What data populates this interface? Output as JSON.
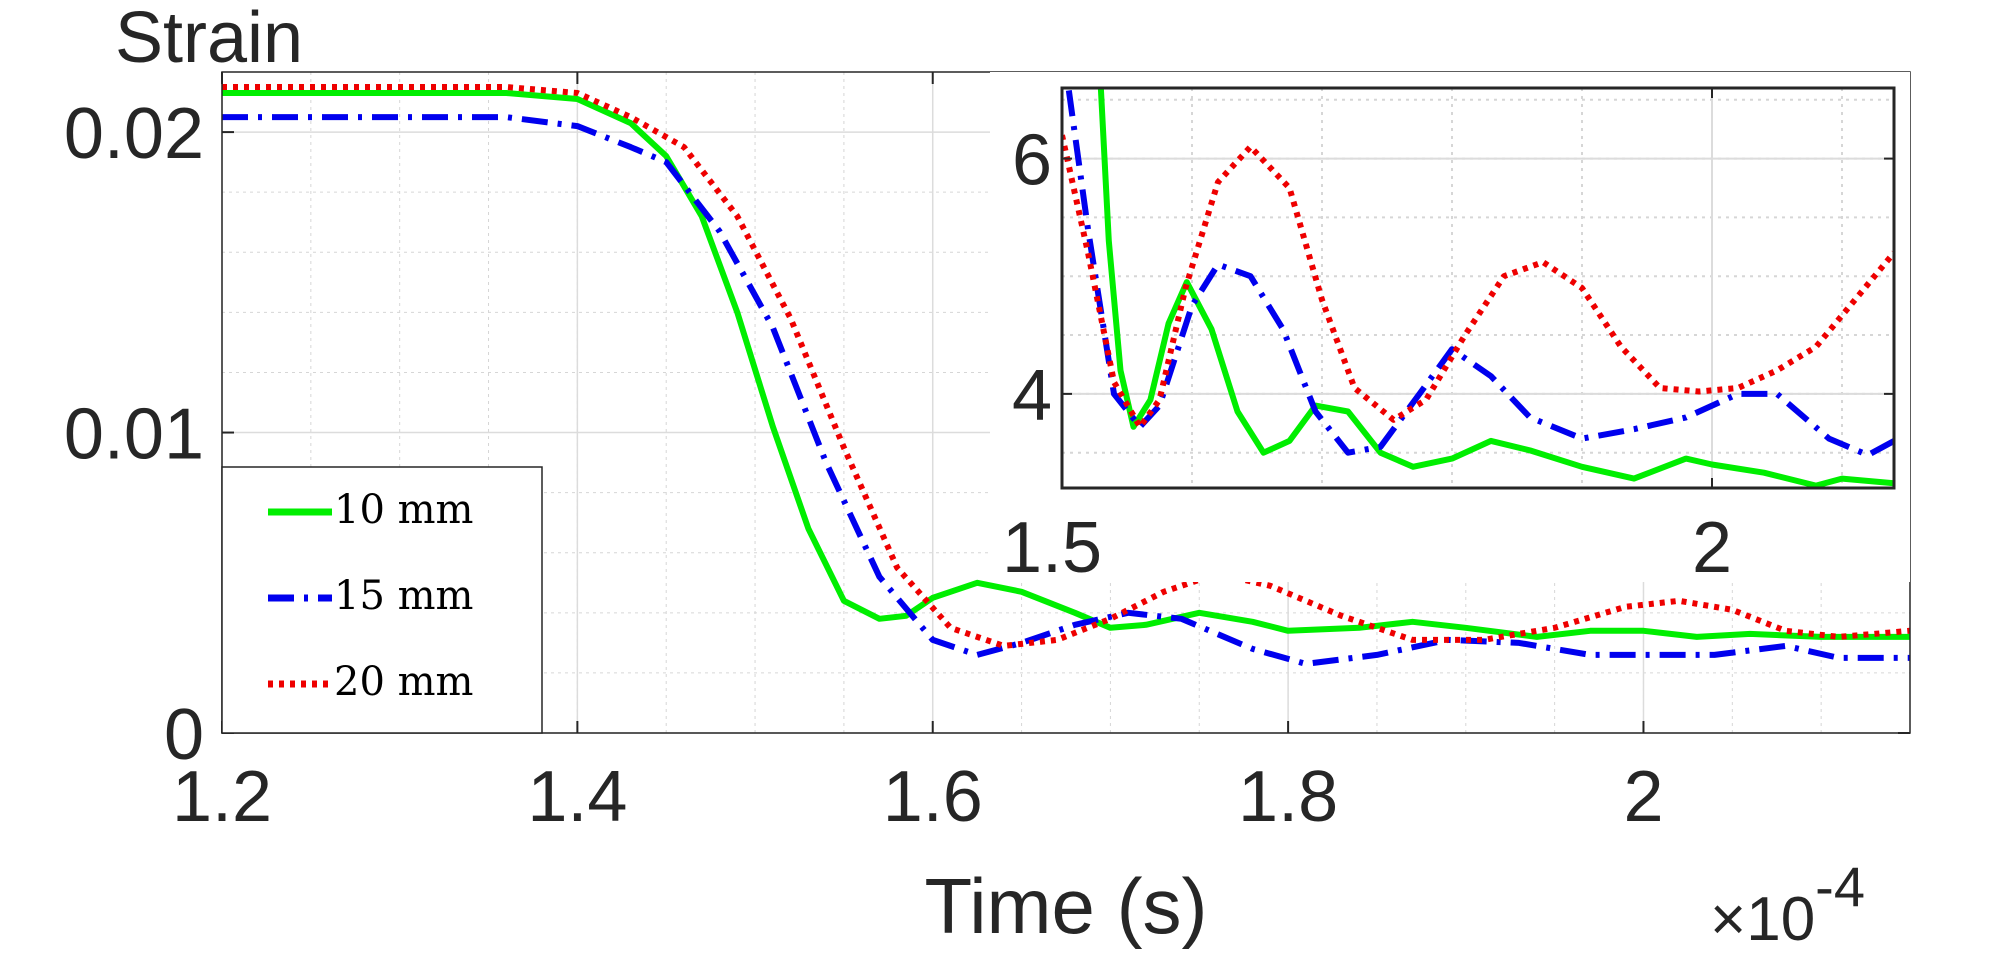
{
  "chart_data": {
    "type": "line",
    "ylabel": "Strain",
    "xlabel": "Time (s)",
    "x_multiplier": "×10",
    "x_multiplier_exponent": "-4",
    "xlim": [
      1.2,
      2.15
    ],
    "ylim": [
      0,
      0.022
    ],
    "xticks": [
      1.2,
      1.4,
      1.6,
      1.8,
      2
    ],
    "xtick_labels": [
      "1.2",
      "1.4",
      "1.6",
      "1.8",
      "2"
    ],
    "yticks": [
      0,
      0.01,
      0.02
    ],
    "ytick_labels": [
      "0",
      "0.01",
      "0.02"
    ],
    "grid": true,
    "legend_position": "bottom-left",
    "series": [
      {
        "name": "10 mm",
        "color": "#00ee00",
        "style": "solid",
        "x": [
          1.2,
          1.3,
          1.36,
          1.4,
          1.43,
          1.45,
          1.47,
          1.49,
          1.51,
          1.53,
          1.55,
          1.57,
          1.585,
          1.6,
          1.625,
          1.65,
          1.68,
          1.7,
          1.72,
          1.75,
          1.78,
          1.8,
          1.84,
          1.87,
          1.9,
          1.94,
          1.97,
          2.0,
          2.03,
          2.06,
          2.1,
          2.15
        ],
        "y": [
          0.0213,
          0.0213,
          0.0213,
          0.0211,
          0.0203,
          0.0192,
          0.0172,
          0.014,
          0.0102,
          0.0068,
          0.0044,
          0.0038,
          0.0039,
          0.0045,
          0.005,
          0.0047,
          0.004,
          0.0035,
          0.0036,
          0.004,
          0.0037,
          0.0034,
          0.0035,
          0.0037,
          0.0035,
          0.0032,
          0.0034,
          0.0034,
          0.0032,
          0.0033,
          0.0032,
          0.0032
        ]
      },
      {
        "name": "15 mm",
        "color": "#0000ee",
        "style": "dashdot",
        "x": [
          1.2,
          1.3,
          1.36,
          1.4,
          1.43,
          1.45,
          1.48,
          1.51,
          1.54,
          1.57,
          1.6,
          1.625,
          1.65,
          1.68,
          1.71,
          1.74,
          1.78,
          1.81,
          1.85,
          1.89,
          1.93,
          1.97,
          2.0,
          2.04,
          2.08,
          2.11,
          2.15
        ],
        "y": [
          0.0205,
          0.0205,
          0.0205,
          0.0202,
          0.0195,
          0.019,
          0.0167,
          0.0135,
          0.009,
          0.0052,
          0.0031,
          0.0026,
          0.003,
          0.0036,
          0.004,
          0.0038,
          0.0028,
          0.0023,
          0.0026,
          0.0031,
          0.003,
          0.0026,
          0.0026,
          0.0026,
          0.0029,
          0.0025,
          0.0025
        ]
      },
      {
        "name": "20 mm",
        "color": "#ee0000",
        "style": "dotted",
        "x": [
          1.2,
          1.3,
          1.36,
          1.4,
          1.43,
          1.46,
          1.49,
          1.52,
          1.55,
          1.58,
          1.61,
          1.64,
          1.67,
          1.7,
          1.73,
          1.76,
          1.79,
          1.83,
          1.87,
          1.91,
          1.95,
          1.99,
          2.02,
          2.05,
          2.08,
          2.11,
          2.15
        ],
        "y": [
          0.0215,
          0.0215,
          0.0215,
          0.0213,
          0.0205,
          0.0195,
          0.0172,
          0.0138,
          0.0095,
          0.0055,
          0.0035,
          0.0029,
          0.0031,
          0.0038,
          0.0047,
          0.0053,
          0.0049,
          0.0039,
          0.0031,
          0.0031,
          0.0035,
          0.0042,
          0.0044,
          0.0041,
          0.0034,
          0.0032,
          0.0034
        ]
      }
    ],
    "inset": {
      "xlim": [
        1.5,
        2.14
      ],
      "ylim": [
        3.2,
        6.6
      ],
      "xticks": [
        1.5,
        2
      ],
      "xtick_labels": [
        "1.5",
        "2"
      ],
      "yticks": [
        4,
        6
      ],
      "ytick_labels": [
        "4",
        "6"
      ],
      "grid": true,
      "series": [
        {
          "name": "10 mm",
          "x": [
            1.528,
            1.536,
            1.545,
            1.555,
            1.568,
            1.582,
            1.596,
            1.615,
            1.635,
            1.655,
            1.675,
            1.695,
            1.72,
            1.745,
            1.77,
            1.8,
            1.83,
            1.86,
            1.9,
            1.94,
            1.98,
            2.0,
            2.04,
            2.08,
            2.1,
            2.14
          ],
          "y": [
            7.0,
            5.3,
            4.2,
            3.72,
            3.95,
            4.6,
            4.95,
            4.55,
            3.85,
            3.5,
            3.6,
            3.9,
            3.85,
            3.5,
            3.38,
            3.45,
            3.6,
            3.52,
            3.38,
            3.28,
            3.45,
            3.4,
            3.33,
            3.22,
            3.28,
            3.24
          ]
        },
        {
          "name": "15 mm",
          "x": [
            1.5,
            1.52,
            1.54,
            1.56,
            1.575,
            1.6,
            1.62,
            1.645,
            1.67,
            1.695,
            1.72,
            1.745,
            1.775,
            1.8,
            1.83,
            1.86,
            1.9,
            1.94,
            1.98,
            2.02,
            2.05,
            2.09,
            2.12,
            2.14
          ],
          "y": [
            7.0,
            5.4,
            4.0,
            3.72,
            3.9,
            4.75,
            5.1,
            5.0,
            4.55,
            3.85,
            3.5,
            3.55,
            4.0,
            4.38,
            4.15,
            3.8,
            3.62,
            3.7,
            3.8,
            4.0,
            4.0,
            3.62,
            3.48,
            3.6
          ]
        },
        {
          "name": "20 mm",
          "x": [
            1.5,
            1.52,
            1.54,
            1.56,
            1.575,
            1.595,
            1.62,
            1.645,
            1.675,
            1.7,
            1.725,
            1.755,
            1.78,
            1.81,
            1.84,
            1.87,
            1.9,
            1.93,
            1.96,
            1.99,
            2.02,
            2.05,
            2.08,
            2.11,
            2.14
          ],
          "y": [
            6.2,
            5.2,
            4.1,
            3.72,
            3.95,
            4.9,
            5.8,
            6.1,
            5.75,
            4.8,
            4.05,
            3.78,
            3.95,
            4.5,
            5.0,
            5.12,
            4.9,
            4.4,
            4.05,
            4.02,
            4.05,
            4.2,
            4.4,
            4.8,
            5.2
          ]
        }
      ]
    }
  }
}
